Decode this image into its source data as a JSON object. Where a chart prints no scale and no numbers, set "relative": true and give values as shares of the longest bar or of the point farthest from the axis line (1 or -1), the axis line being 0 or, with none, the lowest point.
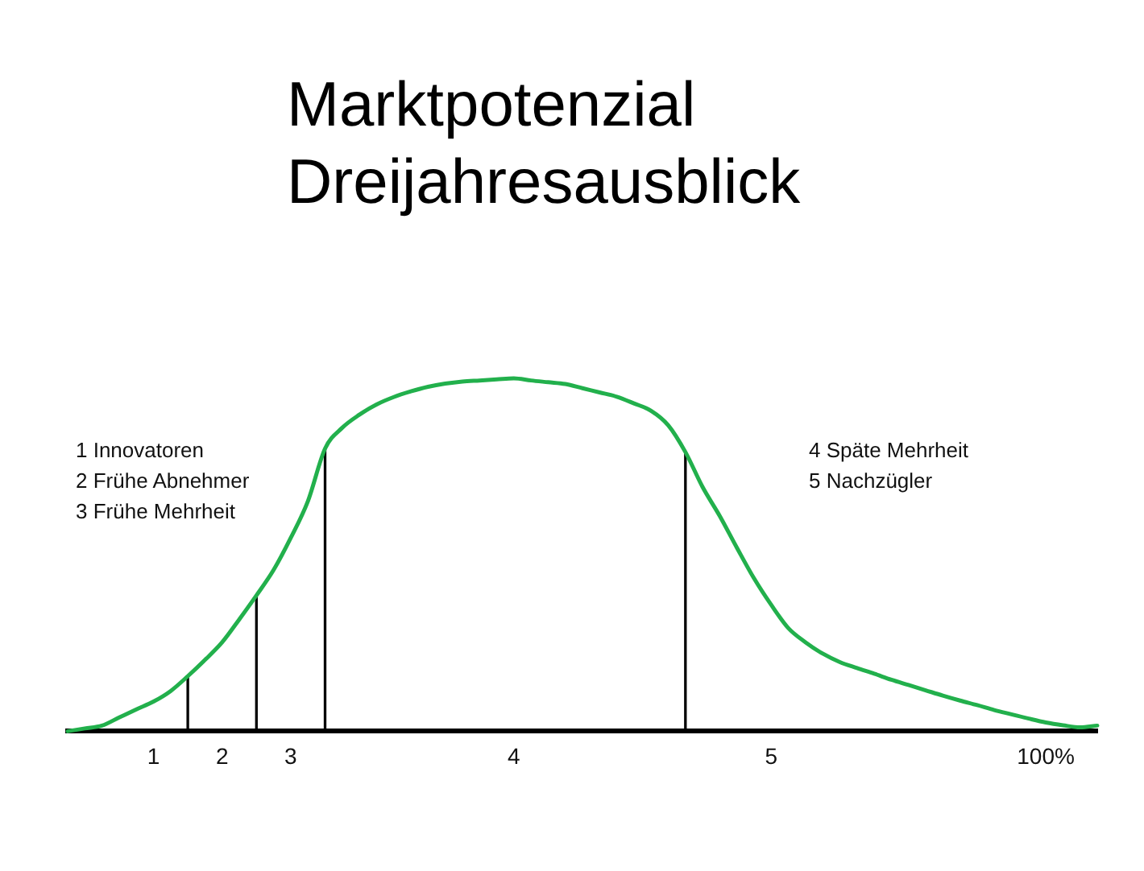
{
  "chart_data": {
    "type": "line",
    "title": "Marktpotenzial Dreijahresausblick",
    "relative": true,
    "categories": [
      null,
      null,
      null,
      null,
      null,
      "1",
      null,
      null,
      null,
      "2",
      null,
      null,
      null,
      "3",
      null,
      null,
      null,
      null,
      null,
      null,
      null,
      null,
      null,
      null,
      null,
      null,
      "4",
      null,
      null,
      null,
      null,
      null,
      null,
      null,
      null,
      null,
      null,
      null,
      null,
      null,
      null,
      "5",
      null,
      null,
      null,
      null,
      null,
      null,
      null,
      null,
      null,
      null,
      null,
      null,
      null,
      null,
      null,
      "100%",
      null,
      null,
      null
    ],
    "series": [
      {
        "color": "#22b04c",
        "values": [
          0,
          0.008,
          0.016,
          0.039,
          0.062,
          0.084,
          0.114,
          0.156,
          0.202,
          0.252,
          0.317,
          0.385,
          0.457,
          0.548,
          0.652,
          0.801,
          0.86,
          0.897,
          0.926,
          0.947,
          0.963,
          0.976,
          0.985,
          0.991,
          0.994,
          0.997,
          1,
          0.994,
          0.989,
          0.984,
          0.972,
          0.96,
          0.948,
          0.929,
          0.908,
          0.867,
          0.791,
          0.692,
          0.61,
          0.52,
          0.433,
          0.358,
          0.292,
          0.252,
          0.22,
          0.196,
          0.179,
          0.163,
          0.146,
          0.131,
          0.116,
          0.101,
          0.087,
          0.074,
          0.06,
          0.048,
          0.036,
          0.025,
          0.017,
          0.011,
          0.016
        ]
      },
      {
        "type": "bar",
        "color": "#000000",
        "values": [
          null,
          null,
          null,
          null,
          null,
          null,
          null,
          0.156,
          null,
          null,
          null,
          0.385,
          null,
          null,
          null,
          0.801,
          null,
          null,
          null,
          null,
          null,
          null,
          null,
          null,
          null,
          null,
          null,
          null,
          null,
          null,
          null,
          null,
          null,
          null,
          null,
          null,
          0.791,
          null,
          null,
          null,
          null,
          null,
          null,
          null,
          null,
          null,
          null,
          null,
          null,
          null,
          null,
          null,
          null,
          null,
          null,
          null,
          null,
          null,
          null,
          null,
          null
        ]
      }
    ],
    "annotations": [
      "1 Innovatoren",
      "2 Frühe Abnehmer",
      "3 Frühe Mehrheit",
      "4 Späte Mehrheit",
      "5 Nachzügler"
    ]
  }
}
